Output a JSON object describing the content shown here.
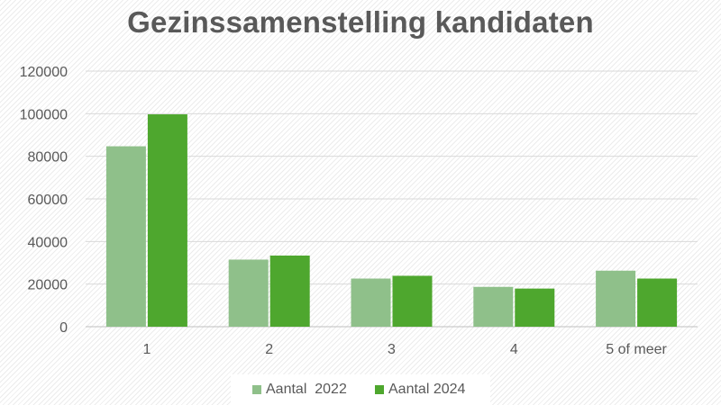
{
  "chart_data": {
    "type": "bar",
    "title": "Gezinssamenstelling kandidaten",
    "categories": [
      "1",
      "2",
      "3",
      "4",
      "5 of meer"
    ],
    "series": [
      {
        "name": "Aantal  2022",
        "color": "#8fc08a",
        "values": [
          84700,
          31500,
          22600,
          18700,
          26300
        ]
      },
      {
        "name": "Aantal 2024",
        "color": "#4ea72e",
        "values": [
          99700,
          33400,
          23900,
          17900,
          22600
        ]
      }
    ],
    "yticks": [
      "0",
      "20000",
      "40000",
      "60000",
      "80000",
      "100000",
      "120000"
    ],
    "ylim": [
      0,
      120000
    ],
    "grid": true,
    "legend_position": "bottom",
    "xlabel": "",
    "ylabel": ""
  }
}
